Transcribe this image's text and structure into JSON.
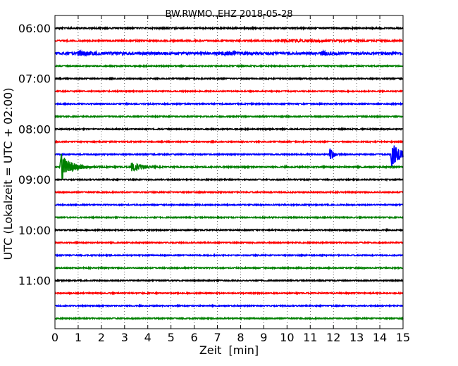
{
  "chart_data": {
    "type": "line",
    "title": "BW.RWMO..EHZ 2018-05-28",
    "xlabel": "Zeit  [min]",
    "ylabel": "UTC (Lokalzeit = UTC + 02:00)",
    "xlim": [
      0,
      15
    ],
    "x_ticks": [
      "0",
      "1",
      "2",
      "3",
      "4",
      "5",
      "6",
      "7",
      "8",
      "9",
      "10",
      "11",
      "12",
      "13",
      "14",
      "15"
    ],
    "y_ticks": [
      {
        "row": 0,
        "label": "06:00"
      },
      {
        "row": 4,
        "label": "07:00"
      },
      {
        "row": 8,
        "label": "08:00"
      },
      {
        "row": 12,
        "label": "09:00"
      },
      {
        "row": 16,
        "label": "10:00"
      },
      {
        "row": 20,
        "label": "11:00"
      }
    ],
    "grid": "vertical dotted",
    "trace_interval_min": 15,
    "trace_colors": [
      "#000000",
      "#ff0000",
      "#0000ff",
      "#008000"
    ],
    "traces": [
      {
        "start": "06:00",
        "noise": 0.6,
        "events": []
      },
      {
        "start": "06:15",
        "noise": 0.6,
        "events": [
          {
            "x": 9.8,
            "amp": 1.2,
            "dur": 4.5
          }
        ]
      },
      {
        "start": "06:30",
        "noise": 1.0,
        "events": [
          {
            "x": 1.0,
            "amp": 2.5,
            "dur": 1.5
          },
          {
            "x": 7.2,
            "amp": 2.2,
            "dur": 1.0
          },
          {
            "x": 11.5,
            "amp": 2.0,
            "dur": 0.8
          }
        ]
      },
      {
        "start": "06:45",
        "noise": 0.5,
        "events": []
      },
      {
        "start": "07:00",
        "noise": 0.5,
        "events": []
      },
      {
        "start": "07:15",
        "noise": 0.5,
        "events": []
      },
      {
        "start": "07:30",
        "noise": 0.5,
        "events": []
      },
      {
        "start": "07:45",
        "noise": 0.5,
        "events": []
      },
      {
        "start": "08:00",
        "noise": 0.5,
        "events": []
      },
      {
        "start": "08:15",
        "noise": 0.5,
        "events": []
      },
      {
        "start": "08:30",
        "noise": 0.5,
        "events": [
          {
            "x": 11.85,
            "amp": 14.0,
            "dur": 0.2
          },
          {
            "x": 14.5,
            "amp": 18.0,
            "dur": 0.6
          }
        ]
      },
      {
        "start": "08:45",
        "noise": 0.6,
        "events": [
          {
            "x": 0.25,
            "amp": 20.0,
            "dur": 0.7
          },
          {
            "x": 3.3,
            "amp": 7.0,
            "dur": 0.6
          }
        ]
      },
      {
        "start": "09:00",
        "noise": 0.5,
        "events": []
      },
      {
        "start": "09:15",
        "noise": 0.5,
        "events": []
      },
      {
        "start": "09:30",
        "noise": 0.5,
        "events": []
      },
      {
        "start": "09:45",
        "noise": 0.5,
        "events": []
      },
      {
        "start": "10:00",
        "noise": 0.5,
        "events": []
      },
      {
        "start": "10:15",
        "noise": 0.5,
        "events": []
      },
      {
        "start": "10:30",
        "noise": 0.5,
        "events": []
      },
      {
        "start": "10:45",
        "noise": 0.5,
        "events": []
      },
      {
        "start": "11:00",
        "noise": 0.5,
        "events": []
      },
      {
        "start": "11:15",
        "noise": 0.5,
        "events": []
      },
      {
        "start": "11:30",
        "noise": 0.5,
        "events": []
      },
      {
        "start": "11:45",
        "noise": 0.5,
        "events": []
      }
    ]
  }
}
